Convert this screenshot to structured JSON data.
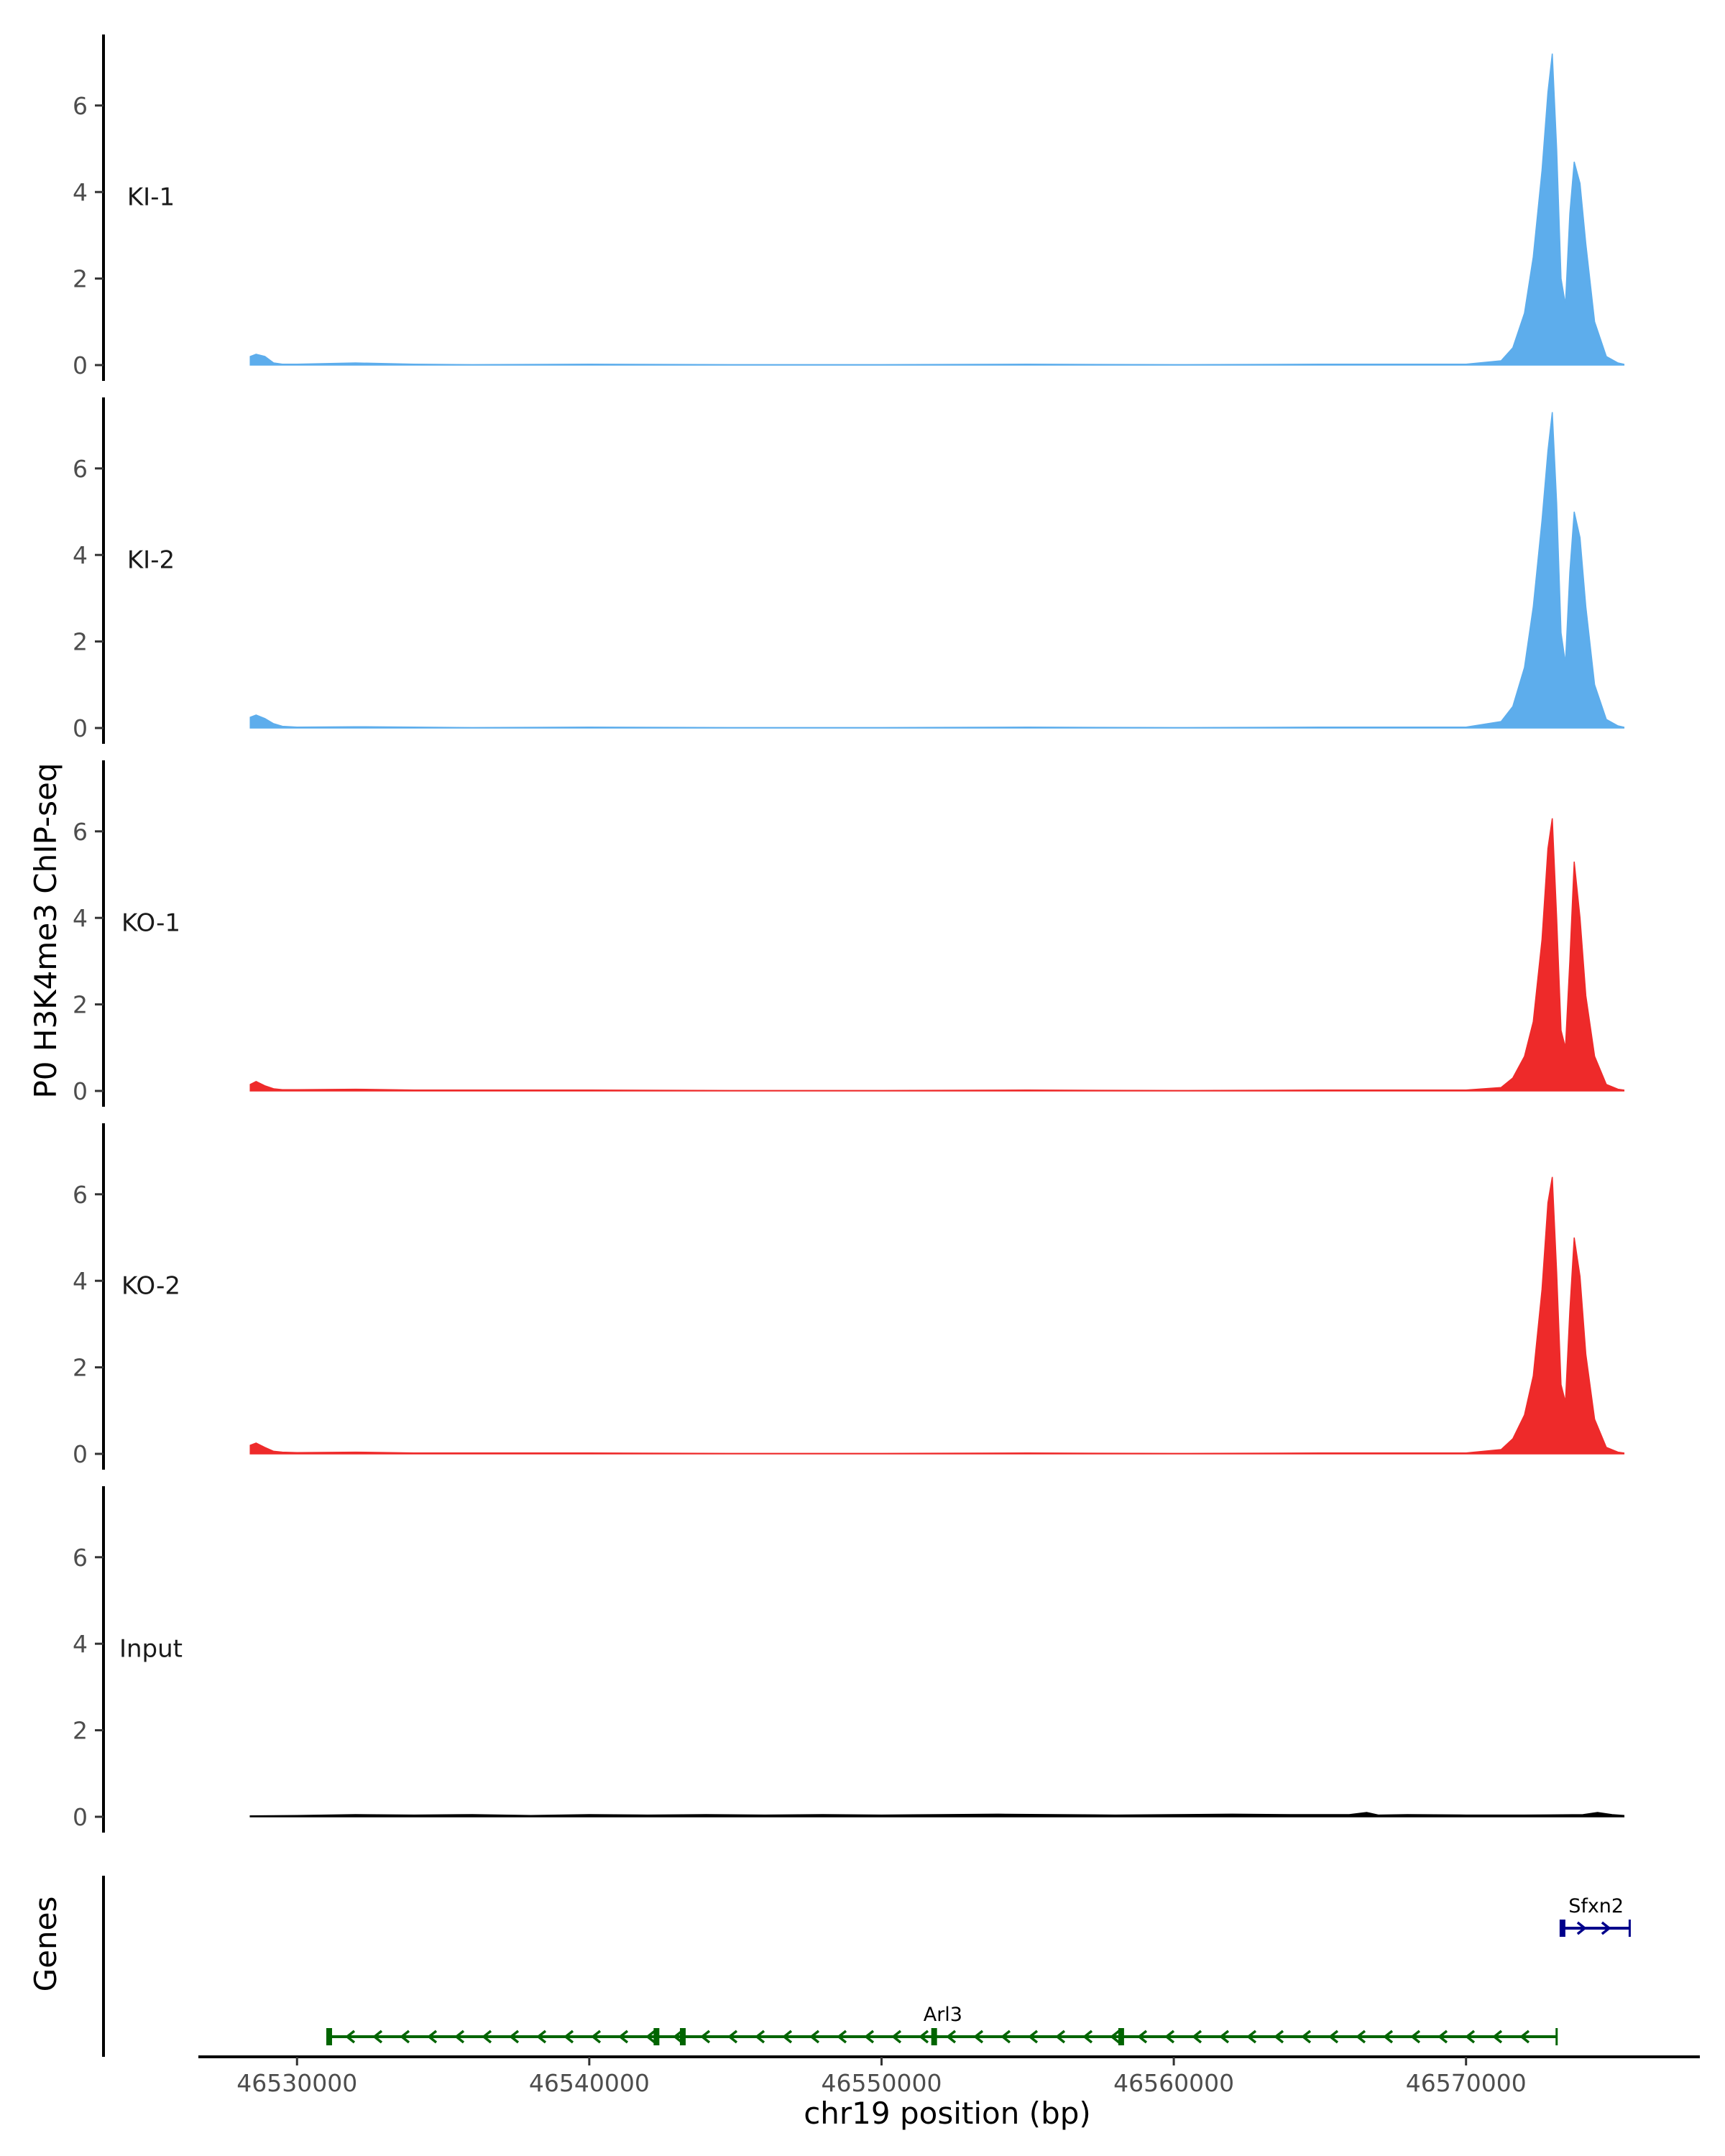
{
  "chart_data": {
    "type": "area",
    "ylabel": "P0 H3K4me3 ChIP-seq",
    "xlabel": "chr19 position (bp)",
    "genes_panel_label": "Genes",
    "x_ticks": [
      46530000,
      46540000,
      46550000,
      46560000,
      46570000
    ],
    "x_tick_labels": [
      "46530000",
      "46540000",
      "46550000",
      "46560000",
      "46570000"
    ],
    "xlim": [
      46526600,
      46578000
    ],
    "y_ticks": [
      0,
      2,
      4,
      6
    ],
    "y_tick_labels": [
      "0",
      "2",
      "4",
      "6"
    ],
    "ylim": [
      -0.2,
      7.6
    ],
    "colors": {
      "KI": "#5DADEC",
      "KO": "#EE2A2A",
      "Input": "#000000",
      "Arl3": "#006400",
      "Sfxn2": "#00008B"
    },
    "tracks": [
      {
        "name": "KI-1",
        "color": "#5DADEC",
        "x": [
          46528400,
          46528600,
          46528900,
          46529200,
          46529500,
          46530000,
          46532000,
          46534000,
          46536000,
          46540000,
          46545000,
          46550000,
          46555000,
          46560000,
          46565000,
          46570000,
          46571200,
          46571600,
          46572000,
          46572300,
          46572600,
          46572800,
          46572950,
          46573100,
          46573250,
          46573400,
          46573550,
          46573700,
          46573900,
          46574100,
          46574400,
          46574800,
          46575200,
          46575400
        ],
        "values": [
          0.2,
          0.25,
          0.2,
          0.05,
          0.02,
          0.02,
          0.05,
          0.02,
          0.01,
          0.02,
          0.01,
          0.01,
          0.02,
          0.01,
          0.02,
          0.02,
          0.1,
          0.4,
          1.2,
          2.5,
          4.5,
          6.3,
          7.2,
          5.0,
          2.0,
          1.4,
          3.5,
          4.7,
          4.2,
          2.8,
          1.0,
          0.2,
          0.05,
          0.02
        ]
      },
      {
        "name": "KI-2",
        "color": "#5DADEC",
        "x": [
          46528400,
          46528600,
          46528900,
          46529200,
          46529500,
          46530000,
          46532000,
          46534000,
          46536000,
          46540000,
          46545000,
          46550000,
          46555000,
          46560000,
          46565000,
          46570000,
          46571200,
          46571600,
          46572000,
          46572300,
          46572600,
          46572800,
          46572950,
          46573100,
          46573250,
          46573400,
          46573550,
          46573700,
          46573900,
          46574100,
          46574400,
          46574800,
          46575200,
          46575400
        ],
        "values": [
          0.25,
          0.3,
          0.22,
          0.1,
          0.04,
          0.02,
          0.03,
          0.02,
          0.01,
          0.02,
          0.01,
          0.01,
          0.02,
          0.01,
          0.02,
          0.02,
          0.15,
          0.5,
          1.4,
          2.8,
          4.8,
          6.4,
          7.3,
          5.2,
          2.2,
          1.5,
          3.6,
          5.0,
          4.4,
          2.8,
          1.0,
          0.2,
          0.05,
          0.02
        ]
      },
      {
        "name": "KO-1",
        "color": "#EE2A2A",
        "x": [
          46528400,
          46528600,
          46528900,
          46529200,
          46529500,
          46530000,
          46532000,
          46534000,
          46536000,
          46540000,
          46545000,
          46550000,
          46555000,
          46560000,
          46565000,
          46570000,
          46571200,
          46571600,
          46572000,
          46572300,
          46572600,
          46572800,
          46572950,
          46573100,
          46573250,
          46573400,
          46573550,
          46573700,
          46573900,
          46574100,
          46574400,
          46574800,
          46575200,
          46575400
        ],
        "values": [
          0.15,
          0.22,
          0.12,
          0.05,
          0.03,
          0.03,
          0.04,
          0.02,
          0.02,
          0.02,
          0.01,
          0.01,
          0.02,
          0.01,
          0.02,
          0.02,
          0.08,
          0.3,
          0.8,
          1.6,
          3.5,
          5.6,
          6.3,
          4.0,
          1.4,
          1.0,
          3.0,
          5.3,
          4.0,
          2.2,
          0.8,
          0.15,
          0.04,
          0.02
        ]
      },
      {
        "name": "KO-2",
        "color": "#EE2A2A",
        "x": [
          46528400,
          46528600,
          46528900,
          46529200,
          46529500,
          46530000,
          46532000,
          46534000,
          46536000,
          46540000,
          46545000,
          46550000,
          46555000,
          46560000,
          46565000,
          46570000,
          46571200,
          46571600,
          46572000,
          46572300,
          46572600,
          46572800,
          46572950,
          46573100,
          46573250,
          46573400,
          46573550,
          46573700,
          46573900,
          46574100,
          46574400,
          46574800,
          46575200,
          46575400
        ],
        "values": [
          0.2,
          0.25,
          0.15,
          0.06,
          0.04,
          0.03,
          0.04,
          0.02,
          0.02,
          0.02,
          0.01,
          0.01,
          0.02,
          0.01,
          0.02,
          0.02,
          0.1,
          0.35,
          0.9,
          1.8,
          3.8,
          5.8,
          6.4,
          4.2,
          1.6,
          1.2,
          3.3,
          5.0,
          4.1,
          2.3,
          0.8,
          0.15,
          0.04,
          0.02
        ]
      },
      {
        "name": "Input",
        "color": "#000000",
        "x": [
          46528400,
          46530000,
          46532000,
          46534000,
          46536000,
          46538000,
          46540000,
          46542000,
          46544000,
          46546000,
          46548000,
          46550000,
          46552000,
          46554000,
          46556000,
          46558000,
          46560000,
          46562000,
          46564000,
          46566000,
          46566600,
          46567000,
          46568000,
          46570000,
          46572000,
          46574000,
          46574500,
          46575000,
          46575400
        ],
        "values": [
          0.02,
          0.03,
          0.05,
          0.04,
          0.05,
          0.03,
          0.05,
          0.04,
          0.05,
          0.04,
          0.05,
          0.04,
          0.05,
          0.06,
          0.05,
          0.04,
          0.05,
          0.06,
          0.05,
          0.05,
          0.1,
          0.04,
          0.05,
          0.04,
          0.04,
          0.05,
          0.1,
          0.05,
          0.03
        ]
      }
    ],
    "genes": [
      {
        "name": "Arl3",
        "strand": "-",
        "start": 46531100,
        "end": 46573100,
        "exons": [
          46531100,
          46542300,
          46543200,
          46551800,
          46558200
        ],
        "color": "#006400"
      },
      {
        "name": "Sfxn2",
        "strand": "+",
        "start": 46573300,
        "end": 46575600,
        "exons": [
          46573300
        ],
        "color": "#00008B"
      }
    ]
  }
}
